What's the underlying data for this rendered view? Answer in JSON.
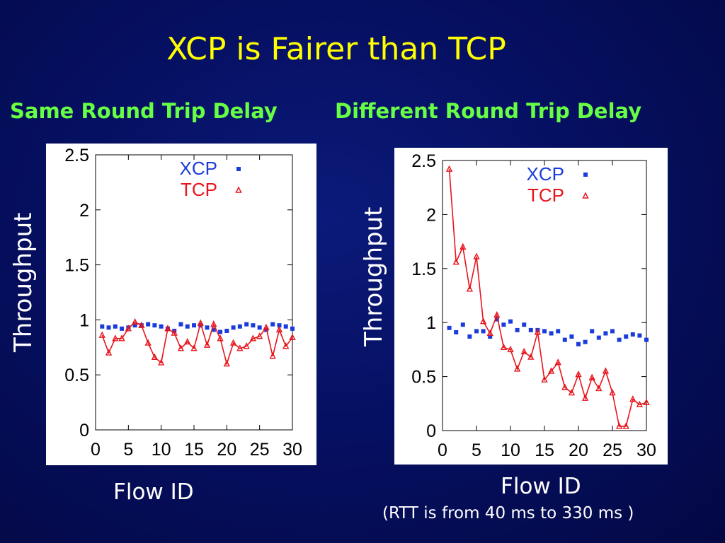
{
  "slide": {
    "title": "XCP is Fairer than TCP",
    "left_heading": "Same Round Trip Delay",
    "right_heading": "Different Round Trip Delay",
    "left_ylabel": "Throughput",
    "right_ylabel": "Throughput",
    "left_xlabel": "Flow ID",
    "right_xlabel": "Flow ID",
    "right_note": "(RTT is from 40 ms to 330 ms )"
  },
  "colors": {
    "xcp": "#1a3cdc",
    "tcp": "#e8141c",
    "title": "#ffff00",
    "heading": "#66ff44"
  },
  "chart_data": [
    {
      "type": "scatter",
      "xlim": [
        0,
        30
      ],
      "ylim": [
        0,
        2.5
      ],
      "xticks": [
        "0",
        "5",
        "10",
        "15",
        "20",
        "25",
        "30"
      ],
      "yticks": [
        "0",
        "0.5",
        "1",
        "1.5",
        "2",
        "2.5"
      ],
      "legend_position": "top-right",
      "grid": false,
      "series": [
        {
          "name": "XCP",
          "marker": "square",
          "line": false,
          "x": [
            1,
            2,
            3,
            4,
            5,
            6,
            7,
            8,
            9,
            10,
            11,
            12,
            13,
            14,
            15,
            16,
            17,
            18,
            19,
            20,
            21,
            22,
            23,
            24,
            25,
            26,
            27,
            28,
            29,
            30
          ],
          "y": [
            0.94,
            0.93,
            0.94,
            0.92,
            0.93,
            0.95,
            0.95,
            0.96,
            0.95,
            0.94,
            0.92,
            0.9,
            0.96,
            0.94,
            0.95,
            0.95,
            0.93,
            0.91,
            0.89,
            0.9,
            0.93,
            0.94,
            0.96,
            0.95,
            0.93,
            0.91,
            0.96,
            0.95,
            0.94,
            0.92
          ]
        },
        {
          "name": "TCP",
          "marker": "triangle",
          "line": true,
          "x": [
            1,
            2,
            3,
            4,
            5,
            6,
            7,
            8,
            9,
            10,
            11,
            12,
            13,
            14,
            15,
            16,
            17,
            18,
            19,
            20,
            21,
            22,
            23,
            24,
            25,
            26,
            27,
            28,
            29,
            30
          ],
          "y": [
            0.86,
            0.7,
            0.83,
            0.83,
            0.92,
            0.98,
            0.95,
            0.79,
            0.66,
            0.61,
            0.92,
            0.88,
            0.74,
            0.8,
            0.74,
            0.97,
            0.77,
            0.96,
            0.83,
            0.6,
            0.79,
            0.74,
            0.76,
            0.83,
            0.85,
            0.93,
            0.67,
            0.91,
            0.76,
            0.84
          ]
        }
      ]
    },
    {
      "type": "scatter",
      "xlim": [
        0,
        30
      ],
      "ylim": [
        0,
        2.5
      ],
      "xticks": [
        "0",
        "5",
        "10",
        "15",
        "20",
        "25",
        "30"
      ],
      "yticks": [
        "0",
        "0.5",
        "1",
        "1.5",
        "2",
        "2.5"
      ],
      "legend_position": "top-right",
      "grid": false,
      "series": [
        {
          "name": "XCP",
          "marker": "square",
          "line": false,
          "x": [
            1,
            2,
            3,
            4,
            5,
            6,
            7,
            8,
            9,
            10,
            11,
            12,
            13,
            14,
            15,
            16,
            17,
            18,
            19,
            20,
            21,
            22,
            23,
            24,
            25,
            26,
            27,
            28,
            29,
            30
          ],
          "y": [
            0.95,
            0.91,
            0.98,
            0.87,
            0.92,
            0.92,
            0.87,
            1.03,
            0.98,
            1.01,
            0.93,
            0.98,
            0.93,
            0.93,
            0.92,
            0.9,
            0.92,
            0.84,
            0.87,
            0.8,
            0.82,
            0.92,
            0.86,
            0.9,
            0.92,
            0.84,
            0.87,
            0.89,
            0.88,
            0.84
          ]
        },
        {
          "name": "TCP",
          "marker": "triangle",
          "line": true,
          "x": [
            1,
            2,
            3,
            4,
            5,
            6,
            7,
            8,
            9,
            10,
            11,
            12,
            13,
            14,
            15,
            16,
            17,
            18,
            19,
            20,
            21,
            22,
            23,
            24,
            25,
            26,
            27,
            28,
            29,
            30
          ],
          "y": [
            2.42,
            1.56,
            1.7,
            1.31,
            1.61,
            1.01,
            0.9,
            1.07,
            0.77,
            0.75,
            0.57,
            0.73,
            0.68,
            0.91,
            0.47,
            0.55,
            0.63,
            0.4,
            0.35,
            0.52,
            0.3,
            0.49,
            0.39,
            0.55,
            0.35,
            0.04,
            0.04,
            0.29,
            0.24,
            0.26
          ]
        }
      ]
    }
  ]
}
